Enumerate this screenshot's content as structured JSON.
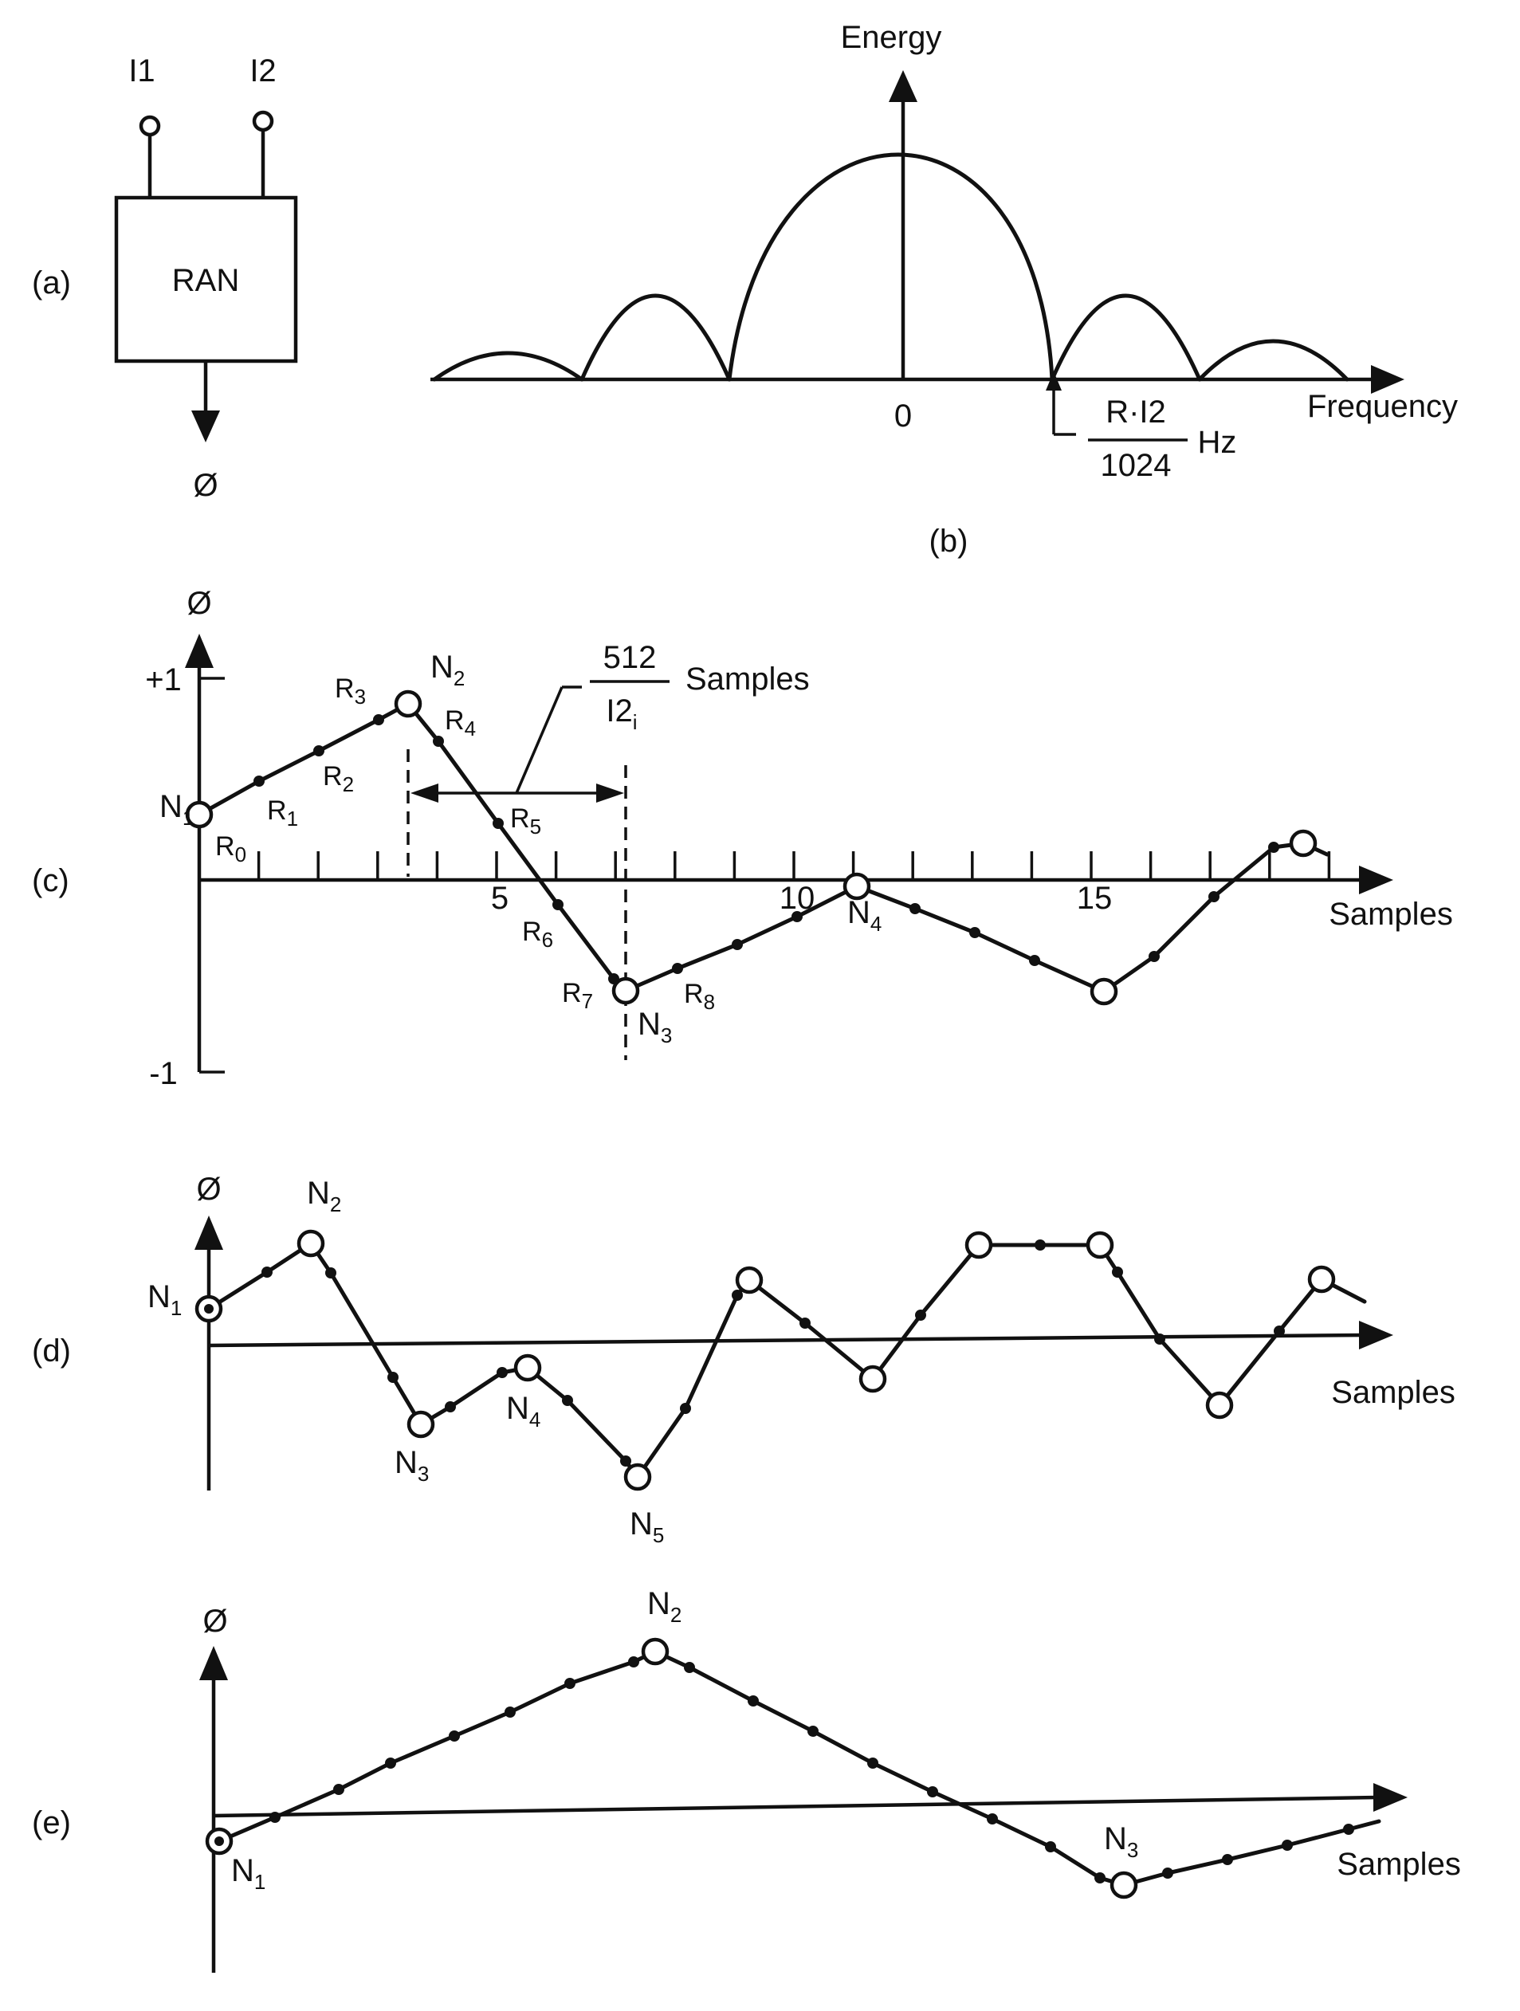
{
  "panel_a": {
    "label": "(a)",
    "box_label": "RAN",
    "input1": "I1",
    "input2": "I2",
    "output": "Ø"
  },
  "panel_b": {
    "label": "(b)",
    "y_axis_label": "Energy",
    "x_axis_label": "Frequency",
    "origin_label": "0",
    "marker_numerator": "R·I2",
    "marker_denominator": "1024",
    "marker_unit": "Hz"
  },
  "panel_c": {
    "label": "(c)",
    "y_axis_label": "Ø",
    "x_axis_label": "Samples",
    "y_top": "+1",
    "y_bottom": "-1",
    "ticks": [
      "5",
      "10",
      "15"
    ],
    "interval_numerator": "512",
    "interval_denominator": "I2",
    "interval_denominator_sub": "i",
    "interval_unit": "Samples",
    "node_labels": [
      {
        "base": "N",
        "sub": "1"
      },
      {
        "base": "N",
        "sub": "2"
      },
      {
        "base": "N",
        "sub": "3"
      },
      {
        "base": "N",
        "sub": "4"
      }
    ],
    "r_labels": [
      {
        "base": "R",
        "sub": "0"
      },
      {
        "base": "R",
        "sub": "1"
      },
      {
        "base": "R",
        "sub": "2"
      },
      {
        "base": "R",
        "sub": "3"
      },
      {
        "base": "R",
        "sub": "4"
      },
      {
        "base": "R",
        "sub": "5"
      },
      {
        "base": "R",
        "sub": "6"
      },
      {
        "base": "R",
        "sub": "7"
      },
      {
        "base": "R",
        "sub": "8"
      }
    ]
  },
  "panel_d": {
    "label": "(d)",
    "y_axis_label": "Ø",
    "x_axis_label": "Samples",
    "node_labels": [
      {
        "base": "N",
        "sub": "1"
      },
      {
        "base": "N",
        "sub": "2"
      },
      {
        "base": "N",
        "sub": "3"
      },
      {
        "base": "N",
        "sub": "4"
      },
      {
        "base": "N",
        "sub": "5"
      }
    ]
  },
  "panel_e": {
    "label": "(e)",
    "y_axis_label": "Ø",
    "x_axis_label": "Samples",
    "node_labels": [
      {
        "base": "N",
        "sub": "1"
      },
      {
        "base": "N",
        "sub": "2"
      },
      {
        "base": "N",
        "sub": "3"
      }
    ]
  }
}
